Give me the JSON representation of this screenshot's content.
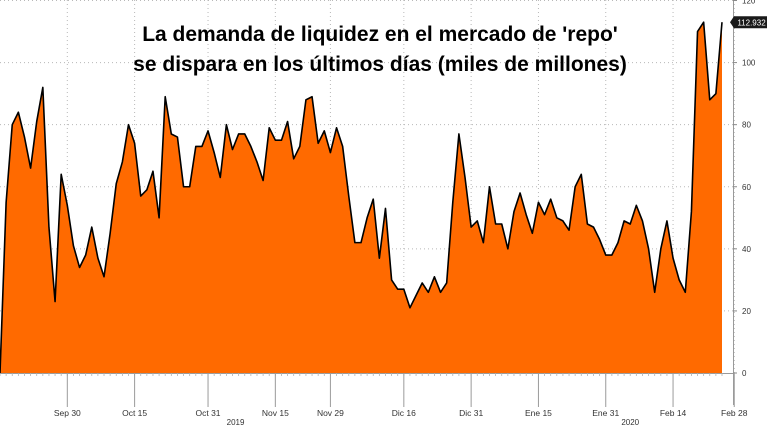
{
  "chart_data": {
    "type": "area",
    "title_lines": [
      "La demanda de liquidez en el mercado de 'repo'",
      "se dispara en los últimos días (miles de millones)"
    ],
    "ylim": [
      0,
      120
    ],
    "yticks": [
      0,
      20,
      40,
      60,
      80,
      100,
      120
    ],
    "last_value_label": "112.932",
    "x_ticks": [
      {
        "label": "Sep 30",
        "i": 11
      },
      {
        "label": "Oct 15",
        "i": 22
      },
      {
        "label": "Oct 31",
        "i": 34
      },
      {
        "label": "Nov 15",
        "i": 45
      },
      {
        "label": "Nov 29",
        "i": 54
      },
      {
        "label": "Dic 16",
        "i": 66
      },
      {
        "label": "Dic 31",
        "i": 77
      },
      {
        "label": "Ene 15",
        "i": 88
      },
      {
        "label": "Ene 31",
        "i": 99
      },
      {
        "label": "Feb 14",
        "i": 110
      },
      {
        "label": "Feb 28",
        "i": 120
      }
    ],
    "year_labels": [
      {
        "label": "2019",
        "i": 38.5
      },
      {
        "label": "2020",
        "i": 103
      }
    ],
    "series": [
      {
        "color": "#ff6a00",
        "line_color": "#000000",
        "values": [
          0,
          55,
          80,
          84,
          76,
          66,
          81,
          92,
          47,
          23,
          64,
          54,
          41,
          34,
          38,
          47,
          37,
          31,
          45,
          61,
          68,
          80,
          74,
          57,
          59,
          65,
          50,
          89,
          77,
          76,
          60,
          60,
          73,
          73,
          78,
          71,
          63,
          80,
          72,
          77,
          77,
          73,
          68,
          62,
          79,
          75,
          75,
          81,
          69,
          73,
          88,
          89,
          74,
          78,
          71,
          79,
          73,
          57,
          42,
          42,
          50,
          56,
          37,
          53,
          30,
          27,
          27,
          21,
          25,
          29,
          26,
          31,
          26,
          29,
          55,
          77,
          63,
          47,
          49,
          42,
          60,
          48,
          48,
          40,
          52,
          58,
          51,
          45,
          55,
          51,
          56,
          50,
          49,
          46,
          60,
          64,
          48,
          47,
          43,
          38,
          38,
          42,
          49,
          48,
          54,
          49,
          40,
          26,
          40,
          49,
          37,
          30,
          26,
          52,
          110,
          113,
          88,
          90,
          113
        ]
      }
    ]
  }
}
